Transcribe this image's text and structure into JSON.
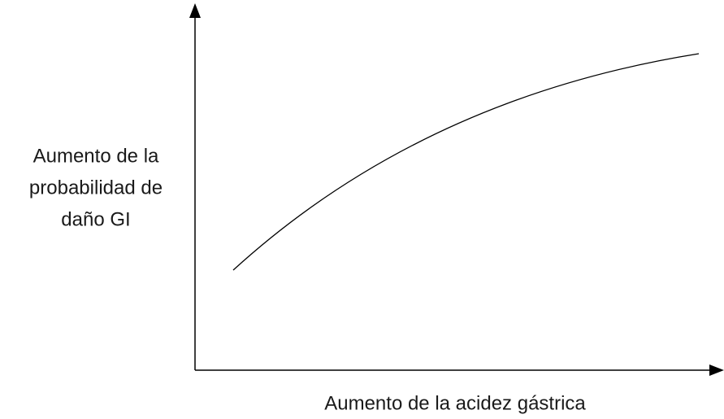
{
  "axes": {
    "x_label": "Aumento de la acidez gástrica",
    "y_label": [
      "Aumento de la",
      "probabilidad de",
      "daño GI"
    ]
  }
}
